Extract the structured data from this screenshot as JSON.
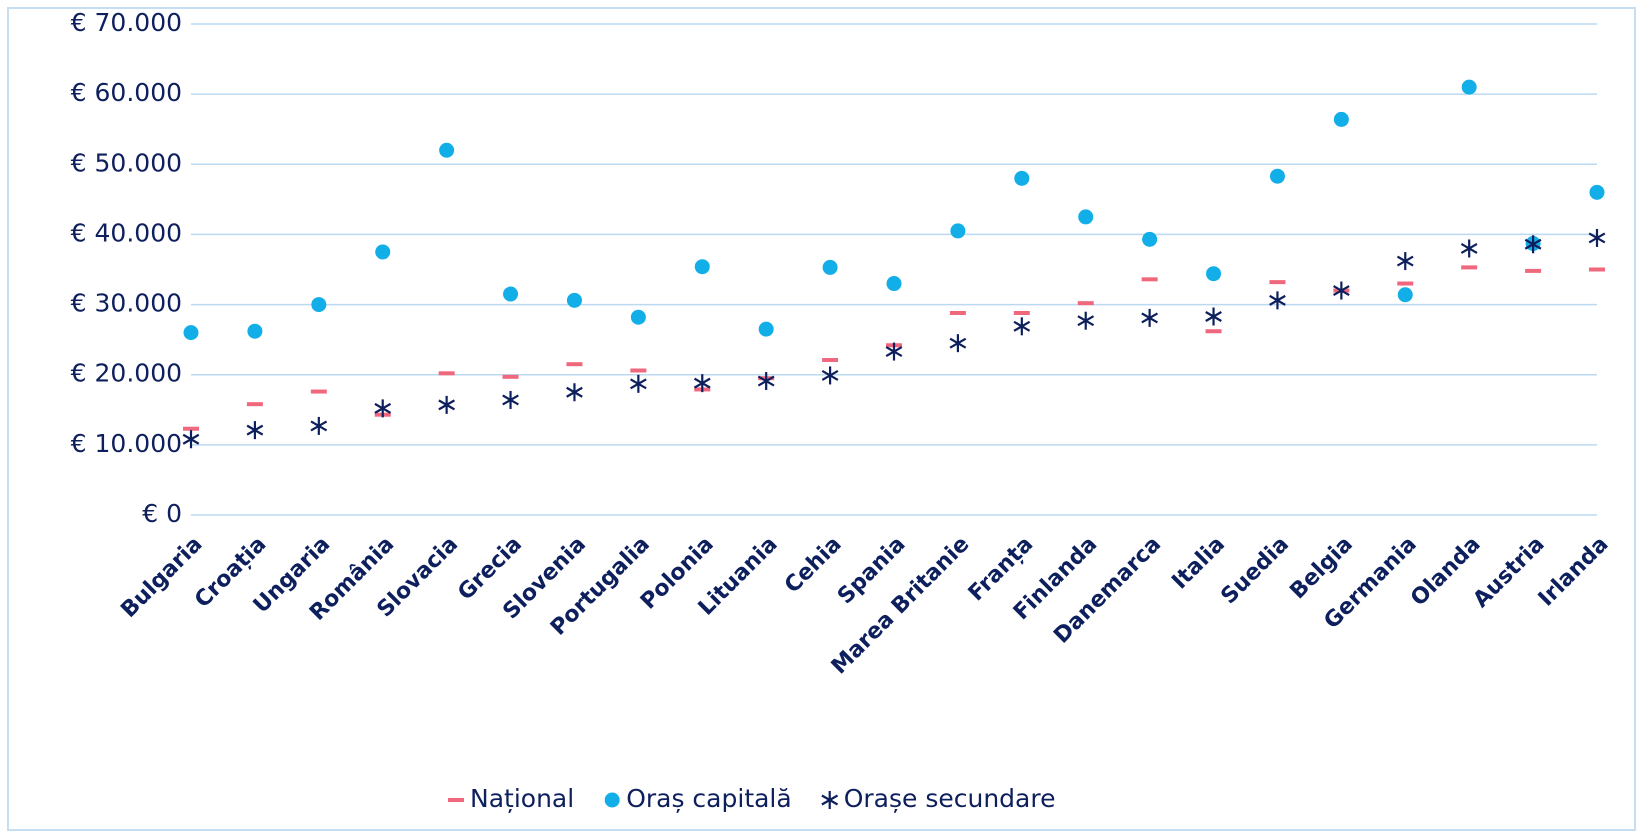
{
  "chart_data": {
    "type": "scatter",
    "categories": [
      "Bulgaria",
      "Croația",
      "Ungaria",
      "România",
      "Slovacia",
      "Grecia",
      "Slovenia",
      "Portugalia",
      "Polonia",
      "Lituania",
      "Cehia",
      "Spania",
      "Marea Britanie",
      "Franța",
      "Finlanda",
      "Danemarca",
      "Italia",
      "Suedia",
      "Belgia",
      "Germania",
      "Olanda",
      "Austria",
      "Irlanda"
    ],
    "series": [
      {
        "name": "Național",
        "color": "#f0687e",
        "marker": "dash",
        "values": [
          12300,
          15800,
          17600,
          14300,
          20200,
          19700,
          21500,
          20600,
          17900,
          19500,
          22100,
          24200,
          28800,
          28800,
          30200,
          33600,
          26200,
          33200,
          32000,
          33000,
          35300,
          34800,
          35000
        ]
      },
      {
        "name": "Oraș capitală",
        "color": "#12aee8",
        "marker": "circle",
        "values": [
          26000,
          26200,
          30000,
          37500,
          52000,
          31500,
          30600,
          28200,
          35400,
          26500,
          35300,
          33000,
          40500,
          48000,
          42500,
          39300,
          34400,
          48300,
          56400,
          31400,
          61000,
          38700,
          46000
        ]
      },
      {
        "name": "Orașe secundare",
        "color": "#0d1f5c",
        "marker": "star",
        "values": [
          10800,
          12100,
          12700,
          15200,
          15700,
          16400,
          17500,
          18700,
          18800,
          19100,
          19900,
          23300,
          24500,
          26900,
          27700,
          28100,
          28300,
          30600,
          32000,
          36200,
          38000,
          38600,
          39500
        ]
      }
    ],
    "ylim": [
      0,
      70000
    ],
    "yticks": [
      {
        "value": 0,
        "label": "€ 0"
      },
      {
        "value": 10000,
        "label": "€ 10.000"
      },
      {
        "value": 20000,
        "label": "€ 20.000"
      },
      {
        "value": 30000,
        "label": "€ 30.000"
      },
      {
        "value": 40000,
        "label": "€ 40.000"
      },
      {
        "value": 50000,
        "label": "€ 50.000"
      },
      {
        "value": 60000,
        "label": "€ 60.000"
      },
      {
        "value": 70000,
        "label": "€ 70.000"
      }
    ],
    "grid": true,
    "legend": "bottom"
  }
}
